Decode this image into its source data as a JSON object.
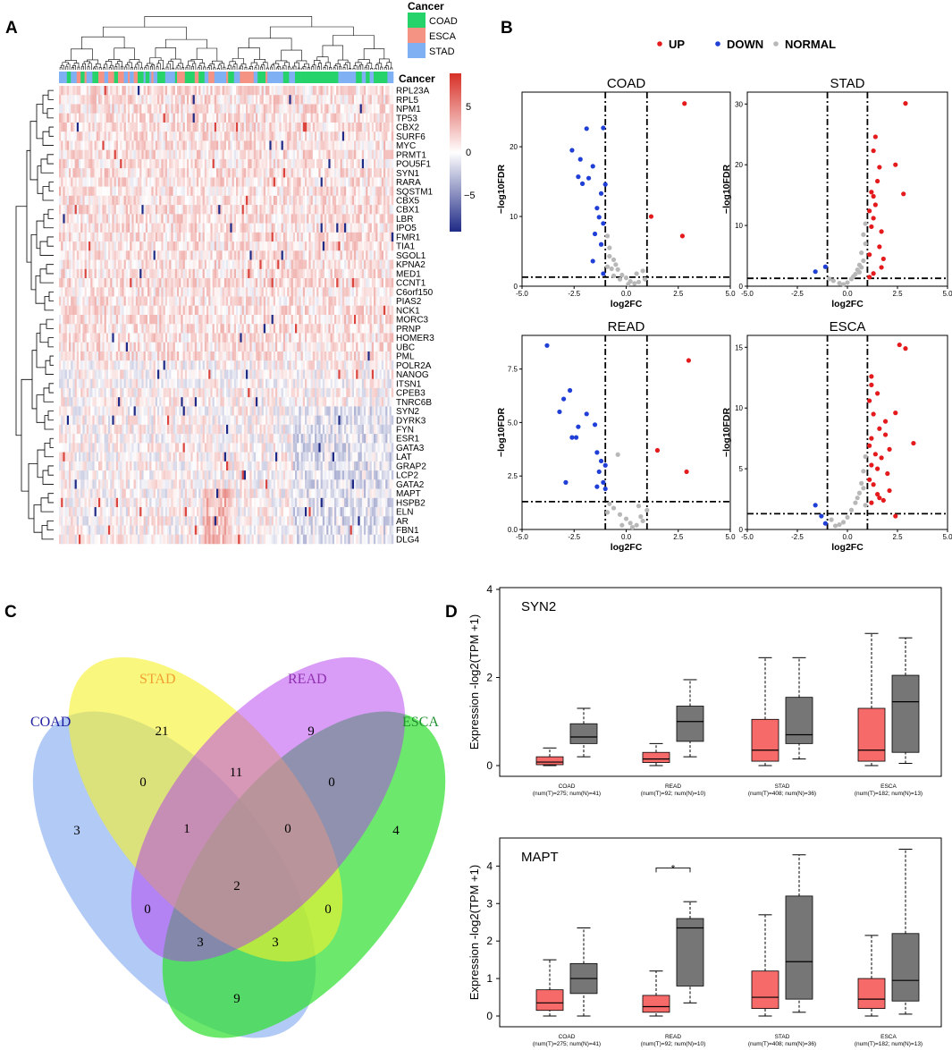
{
  "panels": {
    "a": "A",
    "b": "B",
    "c": "C",
    "d": "D"
  },
  "colors": {
    "COAD": "#26d36a",
    "ESCA": "#f49283",
    "STAD": "#7fb0f3",
    "UP": "#e41a1c",
    "DOWN": "#1f3fd6",
    "NORMAL": "#b8b8b8",
    "heat_high": "#d73027",
    "heat_mid": "#ffffff",
    "heat_low": "#1f2a86",
    "tumor_box": "#f76a6a",
    "normal_box": "#767676"
  },
  "heatmap": {
    "legend_title": "Cancer",
    "legend_items": [
      "COAD",
      "ESCA",
      "STAD"
    ],
    "annotation_label": "Cancer",
    "colorbar_ticks": [
      "5",
      "0",
      "−5"
    ],
    "genes": [
      "RPL23A",
      "RPL5",
      "NPM1",
      "TP53",
      "CBX2",
      "SURF6",
      "MYC",
      "PRMT1",
      "POU5F1",
      "SYN1",
      "RARA",
      "SQSTM1",
      "CBX5",
      "CBX1",
      "LBR",
      "IPO5",
      "FMR1",
      "TIA1",
      "SGOL1",
      "KPNA2",
      "MED1",
      "CCNT1",
      "C6orf150",
      "PIAS2",
      "NCK1",
      "MORC3",
      "PRNP",
      "HOMER3",
      "UBC",
      "PML",
      "POLR2A",
      "NANOG",
      "ITSN1",
      "CPEB3",
      "TNRC6B",
      "SYN2",
      "DYRK3",
      "FYN",
      "ESR1",
      "GATA3",
      "LAT",
      "GRAP2",
      "LCP2",
      "GATA2",
      "MAPT",
      "HSPB2",
      "ELN",
      "AR",
      "FBN1",
      "DLG4"
    ]
  },
  "volcano": {
    "legend": [
      "UP",
      "DOWN",
      "NORMAL"
    ],
    "xlabel": "log2FC",
    "ylabel": "−log10FDR",
    "x_ticks": [
      "-5.0",
      "-2.5",
      "0.0",
      "2.5",
      "5.0"
    ]
  },
  "venn": {
    "sets": [
      "COAD",
      "STAD",
      "READ",
      "ESCA"
    ],
    "set_colors": {
      "COAD": "#1f1fa0",
      "STAD": "#f0a030",
      "READ": "#9030b0",
      "ESCA": "#209030"
    },
    "counts": [
      "3",
      "21",
      "9",
      "4",
      "0",
      "11",
      "0",
      "1",
      "0",
      "0",
      "2",
      "0",
      "3",
      "3",
      "9"
    ]
  },
  "chart_data": [
    {
      "type": "scatter",
      "title": "COAD",
      "xlabel": "log2FC",
      "ylabel": "−log10FDR",
      "xlim": [
        -5,
        5
      ],
      "ylim": [
        0,
        27
      ],
      "y_ticks": [
        0,
        10,
        20
      ],
      "vlines": [
        -1,
        1
      ],
      "hline": 1.3,
      "up": [
        [
          2.8,
          26.2
        ],
        [
          1.2,
          10
        ],
        [
          2.7,
          7.2
        ]
      ],
      "down": [
        [
          -1.1,
          22.7
        ],
        [
          -1.9,
          22.6
        ],
        [
          -2.6,
          19.5
        ],
        [
          -2.2,
          18.2
        ],
        [
          -1.6,
          17.2
        ],
        [
          -2.3,
          15.7
        ],
        [
          -1.8,
          15.5
        ],
        [
          -2.1,
          14.7
        ],
        [
          -1.0,
          14.6
        ],
        [
          -1.2,
          13.3
        ],
        [
          -1.4,
          11.2
        ],
        [
          -1.3,
          9.9
        ],
        [
          -1.1,
          9.0
        ],
        [
          -1.5,
          7.5
        ],
        [
          -1.2,
          6.0
        ],
        [
          -1.6,
          3.6
        ],
        [
          -1.1,
          1.8
        ]
      ],
      "normal": [
        [
          -0.8,
          5.5
        ],
        [
          -0.6,
          3.8
        ],
        [
          -0.5,
          3.1
        ],
        [
          -0.7,
          2.5
        ],
        [
          -0.4,
          2.4
        ],
        [
          -0.2,
          1.6
        ],
        [
          0.0,
          1.2
        ],
        [
          0.2,
          0.7
        ],
        [
          0.4,
          0.4
        ],
        [
          0.6,
          0.6
        ],
        [
          0.9,
          1.0
        ],
        [
          0.8,
          2.2
        ],
        [
          -0.3,
          1.0
        ],
        [
          0.1,
          0.3
        ],
        [
          -0.6,
          1.5
        ],
        [
          -0.9,
          2.8
        ],
        [
          0.5,
          1.8
        ],
        [
          -0.8,
          4.3
        ],
        [
          -0.9,
          7.2
        ]
      ]
    },
    {
      "type": "scatter",
      "title": "STAD",
      "xlabel": "log2FC",
      "ylabel": "−log10FDR",
      "xlim": [
        -5,
        5
      ],
      "ylim": [
        0,
        31
      ],
      "y_ticks": [
        0,
        10,
        20,
        30
      ],
      "vlines": [
        -1,
        1
      ],
      "hline": 1.3,
      "up": [
        [
          2.9,
          30.1
        ],
        [
          1.4,
          24.6
        ],
        [
          1.3,
          22.3
        ],
        [
          2.4,
          20.0
        ],
        [
          1.6,
          19.6
        ],
        [
          1.5,
          17.3
        ],
        [
          2.8,
          15.2
        ],
        [
          1.2,
          15.5
        ],
        [
          1.3,
          14.8
        ],
        [
          1.4,
          13.4
        ],
        [
          1.1,
          12.4
        ],
        [
          1.3,
          11.2
        ],
        [
          1.2,
          9.8
        ],
        [
          1.7,
          9.0
        ],
        [
          1.6,
          6.5
        ],
        [
          1.1,
          5.2
        ],
        [
          1.7,
          3.1
        ],
        [
          1.3,
          2.1
        ],
        [
          1.1,
          1.5
        ],
        [
          1.8,
          4.5
        ]
      ],
      "down": [
        [
          -1.6,
          2.4
        ],
        [
          -1.1,
          3.2
        ]
      ],
      "normal": [
        [
          0.9,
          10.3
        ],
        [
          0.8,
          8.5
        ],
        [
          0.9,
          7.0
        ],
        [
          0.7,
          5.5
        ],
        [
          0.8,
          4.2
        ],
        [
          0.6,
          3.5
        ],
        [
          0.5,
          2.7
        ],
        [
          0.4,
          2.0
        ],
        [
          0.2,
          1.2
        ],
        [
          0.0,
          0.6
        ],
        [
          -0.2,
          0.3
        ],
        [
          -0.4,
          0.5
        ],
        [
          -0.7,
          0.9
        ],
        [
          0.3,
          1.6
        ],
        [
          0.6,
          2.3
        ],
        [
          0.7,
          3.1
        ],
        [
          -0.9,
          1.2
        ]
      ]
    },
    {
      "type": "scatter",
      "title": "READ",
      "xlabel": "log2FC",
      "ylabel": "−log10FDR",
      "xlim": [
        -5,
        5
      ],
      "ylim": [
        0,
        8.8
      ],
      "y_ticks": [
        0,
        2.5,
        5.0,
        7.5
      ],
      "vlines": [
        -1,
        1
      ],
      "hline": 1.3,
      "up": [
        [
          3.0,
          7.9
        ],
        [
          1.5,
          3.7
        ],
        [
          2.9,
          2.7
        ]
      ],
      "down": [
        [
          -3.8,
          8.6
        ],
        [
          -2.7,
          6.5
        ],
        [
          -3.0,
          6.1
        ],
        [
          -3.2,
          5.5
        ],
        [
          -1.9,
          5.4
        ],
        [
          -2.3,
          4.8
        ],
        [
          -1.5,
          4.9
        ],
        [
          -2.4,
          4.3
        ],
        [
          -2.6,
          4.3
        ],
        [
          -1.4,
          3.6
        ],
        [
          -1.2,
          3.2
        ],
        [
          -1.0,
          3.0
        ],
        [
          -2.9,
          2.2
        ],
        [
          -1.3,
          2.7
        ],
        [
          -1.1,
          2.2
        ],
        [
          -1.0,
          1.9
        ],
        [
          -1.4,
          2.0
        ]
      ],
      "normal": [
        [
          -0.4,
          3.5
        ],
        [
          -0.8,
          1.2
        ],
        [
          -0.6,
          1.0
        ],
        [
          -0.3,
          0.7
        ],
        [
          0.0,
          0.5
        ],
        [
          0.2,
          0.3
        ],
        [
          0.5,
          0.2
        ],
        [
          0.8,
          0.4
        ],
        [
          1.0,
          0.9
        ],
        [
          0.6,
          1.1
        ],
        [
          -0.2,
          0.2
        ],
        [
          -0.9,
          0.8
        ],
        [
          0.3,
          0.1
        ],
        [
          0.7,
          0.6
        ]
      ]
    },
    {
      "type": "scatter",
      "title": "ESCA",
      "xlabel": "log2FC",
      "ylabel": "−log10FDR",
      "xlim": [
        -5,
        5
      ],
      "ylim": [
        0,
        15.5
      ],
      "y_ticks": [
        0,
        5,
        10,
        15
      ],
      "vlines": [
        -1,
        1
      ],
      "hline": 1.3,
      "up": [
        [
          2.6,
          15.2
        ],
        [
          2.9,
          14.9
        ],
        [
          1.2,
          12.6
        ],
        [
          1.2,
          11.9
        ],
        [
          1.5,
          11.2
        ],
        [
          1.1,
          10.6
        ],
        [
          1.3,
          9.5
        ],
        [
          2.4,
          9.6
        ],
        [
          1.9,
          8.9
        ],
        [
          1.6,
          8.3
        ],
        [
          1.2,
          7.5
        ],
        [
          1.9,
          7.8
        ],
        [
          3.3,
          7.1
        ],
        [
          1.1,
          6.9
        ],
        [
          2.1,
          6.6
        ],
        [
          1.4,
          6.2
        ],
        [
          1.7,
          5.9
        ],
        [
          1.2,
          5.3
        ],
        [
          1.5,
          5.0
        ],
        [
          2.0,
          4.6
        ],
        [
          1.1,
          4.1
        ],
        [
          1.3,
          3.7
        ],
        [
          2.1,
          3.2
        ],
        [
          1.5,
          2.9
        ],
        [
          1.8,
          2.4
        ],
        [
          1.2,
          2.2
        ],
        [
          1.6,
          2.6
        ],
        [
          2.4,
          1.1
        ]
      ],
      "down": [
        [
          -1.6,
          2.0
        ],
        [
          -1.3,
          1.1
        ],
        [
          -1.1,
          0.5
        ]
      ],
      "normal": [
        [
          0.9,
          6.0
        ],
        [
          0.8,
          4.8
        ],
        [
          0.7,
          3.8
        ],
        [
          0.6,
          3.0
        ],
        [
          0.4,
          2.2
        ],
        [
          0.2,
          1.6
        ],
        [
          0.0,
          1.0
        ],
        [
          -0.2,
          0.6
        ],
        [
          -0.4,
          0.4
        ],
        [
          -0.6,
          0.3
        ],
        [
          -0.8,
          0.8
        ],
        [
          0.5,
          2.6
        ],
        [
          0.8,
          3.4
        ],
        [
          0.9,
          2.0
        ]
      ]
    },
    {
      "type": "box",
      "title": "SYN2",
      "ylabel": "Expression -log2(TPM +1)",
      "ylim": [
        0,
        4
      ],
      "y_ticks": [
        0,
        2,
        4
      ],
      "categories": [
        "COAD",
        "READ",
        "STAD",
        "ESCA"
      ],
      "sublabels": [
        "(num(T)=275; num(N)=41)",
        "(num(T)=92; num(N)=10)",
        "(num(T)=408; num(N)=36)",
        "(num(T)=182; num(N)=13)"
      ],
      "tumor": [
        [
          0.0,
          0.02,
          0.08,
          0.2,
          0.4
        ],
        [
          0.0,
          0.07,
          0.15,
          0.3,
          0.5
        ],
        [
          0.0,
          0.1,
          0.35,
          1.05,
          2.45
        ],
        [
          0.0,
          0.1,
          0.35,
          1.3,
          3.0
        ]
      ],
      "normal": [
        [
          0.2,
          0.5,
          0.65,
          0.95,
          1.3
        ],
        [
          0.2,
          0.55,
          1.0,
          1.35,
          1.95
        ],
        [
          0.15,
          0.5,
          0.7,
          1.55,
          2.45
        ],
        [
          0.05,
          0.3,
          1.45,
          2.05,
          2.9
        ]
      ],
      "annotation": ""
    },
    {
      "type": "box",
      "title": "MAPT",
      "ylabel": "Expression -log2(TPM +1)",
      "ylim": [
        0,
        4.7
      ],
      "y_ticks": [
        0,
        1,
        2,
        3,
        4
      ],
      "categories": [
        "COAD",
        "READ",
        "STAD",
        "ESCA"
      ],
      "sublabels": [
        "(num(T)=275; num(N)=41)",
        "(num(T)=92; num(N)=10)",
        "(num(T)=408; num(N)=36)",
        "(num(T)=182; num(N)=13)"
      ],
      "tumor": [
        [
          0.0,
          0.15,
          0.35,
          0.7,
          1.5
        ],
        [
          0.0,
          0.1,
          0.25,
          0.55,
          1.2
        ],
        [
          0.0,
          0.2,
          0.5,
          1.2,
          2.7
        ],
        [
          0.0,
          0.2,
          0.45,
          1.0,
          2.15
        ]
      ],
      "normal": [
        [
          0.0,
          0.6,
          1.0,
          1.4,
          2.35
        ],
        [
          0.35,
          0.8,
          2.35,
          2.6,
          3.05
        ],
        [
          0.1,
          0.45,
          1.45,
          3.2,
          4.3
        ],
        [
          0.05,
          0.4,
          0.95,
          2.2,
          4.45
        ]
      ],
      "annotation": "*"
    }
  ]
}
